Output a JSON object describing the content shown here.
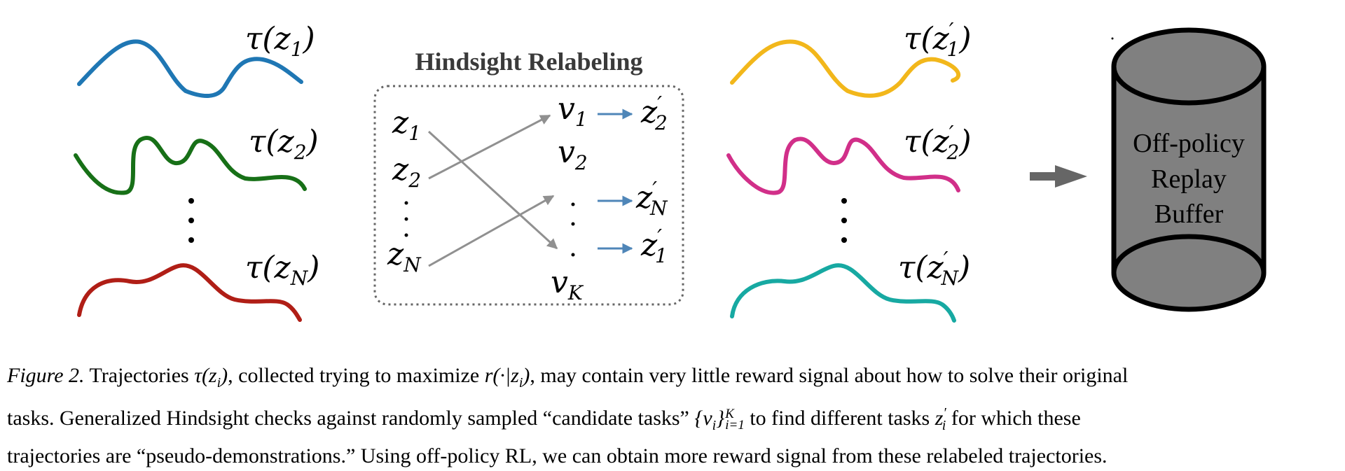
{
  "figure": {
    "relabel_title": "Hindsight Relabeling",
    "buffer_lines": [
      "Off-policy",
      "Replay",
      "Buffer"
    ],
    "left_trajectories": [
      {
        "tau": "τ(",
        "var": "z",
        "sub": "1",
        "prime": "",
        "close": ")",
        "color": "#1f77b4"
      },
      {
        "tau": "τ(",
        "var": "z",
        "sub": "2",
        "prime": "",
        "close": ")",
        "color": "#177017"
      },
      {
        "tau": "τ(",
        "var": "z",
        "sub": "N",
        "prime": "",
        "close": ")",
        "color": "#b01e16"
      }
    ],
    "right_trajectories": [
      {
        "tau": "τ(",
        "var": "z",
        "sub": "1",
        "prime": "′",
        "close": ")",
        "color": "#f2b71b"
      },
      {
        "tau": "τ(",
        "var": "z",
        "sub": "2",
        "prime": "′",
        "close": ")",
        "color": "#d12f89"
      },
      {
        "tau": "τ(",
        "var": "z",
        "sub": "N",
        "prime": "′",
        "close": ")",
        "color": "#17a9a2"
      }
    ],
    "relabel_left": [
      {
        "var": "z",
        "sub": "1"
      },
      {
        "var": "z",
        "sub": "2"
      },
      {
        "var": "z",
        "sub": "N"
      }
    ],
    "relabel_mid": [
      {
        "var": "v",
        "sub": "1"
      },
      {
        "var": "v",
        "sub": "2"
      },
      {
        "var": "v",
        "sub": "K"
      }
    ],
    "relabel_right": [
      {
        "var": "z",
        "sub": "2",
        "prime": "′"
      },
      {
        "var": "z",
        "sub": "N",
        "prime": "′"
      },
      {
        "var": "z",
        "sub": "1",
        "prime": "′"
      }
    ],
    "colors": {
      "arrow_gray": "#909090",
      "arrow_blue": "#4f86b8",
      "cylinder": "#808080",
      "box_border": "#666666"
    }
  },
  "caption": {
    "label": "Figure 2.",
    "line1_a": " Trajectories ",
    "line1_math1": "τ(z",
    "line1_math1_sub": "i",
    "line1_math1_end": ")",
    "line1_b": ", collected trying to maximize ",
    "line1_math2": "r(·|z",
    "line1_math2_sub": "i",
    "line1_math2_end": ")",
    "line1_c": ", may contain very little reward signal about how to solve their original",
    "line2_a": "tasks.  Generalized Hindsight checks against randomly sampled “candidate tasks” ",
    "line2_math": "{v",
    "line2_math_sub": "i",
    "line2_math_end": "}",
    "line2_math_sup": "K",
    "line2_math_sub2": "i=1",
    "line2_b": " to find different tasks ",
    "line2_math3": "z",
    "line2_math3_prime": "′",
    "line2_math3_sub": "i",
    "line2_c": " for which these",
    "line3": "trajectories are “pseudo-demonstrations.” Using off-policy RL, we can obtain more reward signal from these relabeled trajectories."
  }
}
